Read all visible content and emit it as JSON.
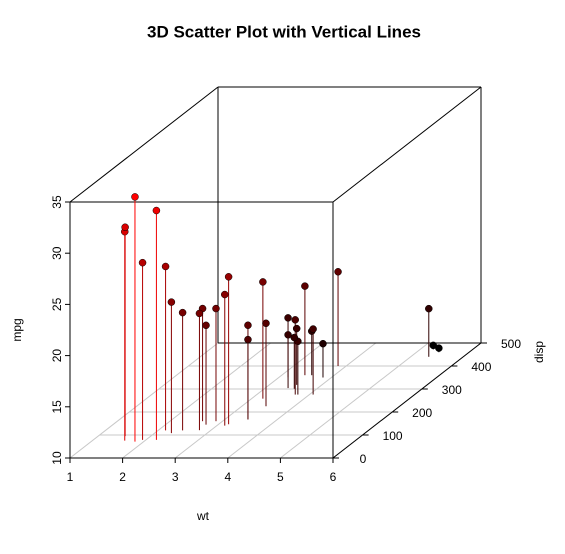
{
  "chart_data": {
    "type": "scatter3d",
    "title": "3D Scatter Plot with Vertical Lines",
    "xlabel": "wt",
    "ylabel": "disp",
    "zlabel": "mpg",
    "xlim": [
      1,
      6
    ],
    "xticks": [
      1,
      2,
      3,
      4,
      5,
      6
    ],
    "ylim": [
      0,
      500
    ],
    "yticks": [
      0,
      100,
      200,
      300,
      400,
      500
    ],
    "zlim": [
      10,
      35
    ],
    "zticks": [
      10,
      15,
      20,
      25,
      30,
      35
    ],
    "grid": true,
    "color_low": "#000000",
    "color_high": "#ff0000",
    "series": [
      {
        "x": [
          2.62,
          2.875,
          2.32,
          3.215,
          3.44,
          3.46,
          3.57,
          3.19,
          3.15,
          3.44,
          3.44,
          4.07,
          3.73,
          3.78,
          5.25,
          5.424,
          5.345,
          2.2,
          1.615,
          1.835,
          2.465,
          3.52,
          3.435,
          3.84,
          3.845,
          1.935,
          2.14,
          1.513,
          3.17,
          2.77,
          3.57,
          2.78
        ],
        "y": [
          160,
          160,
          108,
          258,
          360,
          225,
          360,
          146.7,
          140.8,
          167.6,
          167.6,
          275.8,
          275.8,
          275.8,
          472,
          460,
          440,
          78.7,
          75.7,
          71.1,
          120.1,
          318,
          304,
          350,
          400,
          79,
          120.3,
          95.1,
          351,
          145,
          301,
          121
        ],
        "z": [
          21,
          21,
          22.8,
          21.4,
          18.7,
          18.1,
          14.3,
          24.4,
          22.8,
          19.2,
          17.8,
          16.4,
          17.3,
          15.2,
          10.4,
          10.4,
          14.7,
          32.4,
          30.4,
          33.9,
          21.5,
          15.5,
          15.2,
          13.3,
          19.2,
          27.3,
          26,
          30.4,
          15.8,
          19.7,
          15,
          21.4
        ]
      }
    ]
  }
}
